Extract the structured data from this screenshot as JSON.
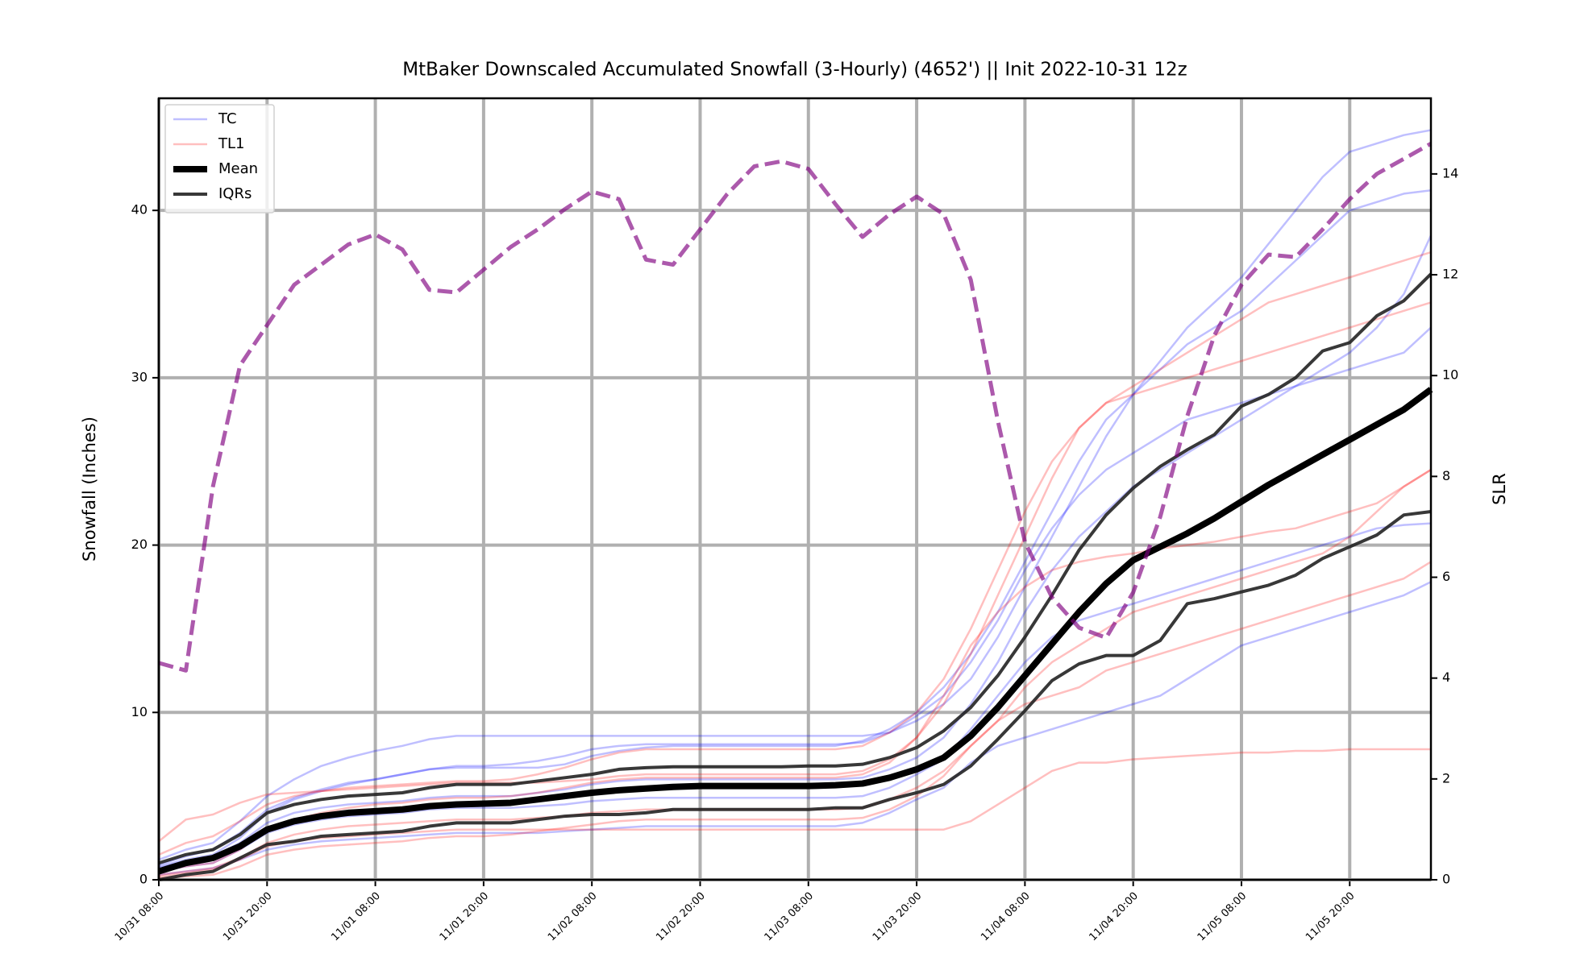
{
  "chart_data": {
    "type": "line",
    "title": "MtBaker Downscaled Accumulated Snowfall (3-Hourly) (4652') || Init 2022-10-31 12z",
    "ylabel": "Snowfall (Inches)",
    "y2label": "SLR",
    "categories": [
      "10/31 08:00",
      null,
      null,
      null,
      "10/31 20:00",
      null,
      null,
      null,
      "11/01 08:00",
      null,
      null,
      null,
      "11/01 20:00",
      null,
      null,
      null,
      "11/02 08:00",
      null,
      null,
      null,
      "11/02 20:00",
      null,
      null,
      null,
      "11/03 08:00",
      null,
      null,
      null,
      "11/03 20:00",
      null,
      null,
      null,
      "11/04 08:00",
      null,
      null,
      null,
      "11/04 20:00",
      null,
      null,
      null,
      "11/05 08:00",
      null,
      null,
      null,
      "11/05 20:00",
      null,
      null,
      null
    ],
    "ylim": [
      0,
      46.7
    ],
    "yticks": [
      0,
      10,
      20,
      30,
      40
    ],
    "y2lim": [
      0,
      15.5
    ],
    "y2ticks": [
      0,
      2,
      4,
      6,
      8,
      10,
      12,
      14
    ],
    "grid": true,
    "legend": "upper left",
    "series": [
      {
        "name": "TC",
        "color": "#0000ff",
        "alpha": 0.25,
        "linewidth": 2.5,
        "members": [
          [
            1.2,
            1.8,
            2.2,
            3.5,
            5.0,
            6.0,
            6.8,
            7.3,
            7.7,
            8.0,
            8.4,
            8.6,
            8.6,
            8.6,
            8.6,
            8.6,
            8.6,
            8.6,
            8.6,
            8.6,
            8.6,
            8.6,
            8.6,
            8.6,
            8.6,
            8.6,
            8.6,
            8.8,
            9.5,
            10.5,
            12.0,
            14.5,
            17.5,
            20.5,
            23.5,
            26.5,
            29.0,
            31.0,
            33.0,
            34.5,
            36.0,
            38.0,
            40.0,
            42.0,
            43.5,
            44.0,
            44.5,
            44.8
          ],
          [
            0.8,
            1.2,
            1.5,
            2.5,
            4.0,
            4.8,
            5.3,
            5.7,
            6.0,
            6.3,
            6.6,
            6.8,
            6.8,
            6.9,
            7.1,
            7.4,
            7.8,
            8.0,
            8.1,
            8.1,
            8.1,
            8.1,
            8.1,
            8.1,
            8.1,
            8.1,
            8.2,
            8.8,
            9.8,
            11.0,
            13.0,
            15.5,
            18.5,
            21.0,
            23.0,
            24.5,
            25.5,
            26.5,
            27.5,
            28.0,
            28.5,
            29.0,
            29.5,
            30.0,
            30.5,
            31.0,
            31.5,
            33.0
          ],
          [
            0.3,
            0.5,
            0.7,
            1.2,
            1.8,
            2.1,
            2.3,
            2.4,
            2.5,
            2.6,
            2.7,
            2.8,
            2.8,
            2.8,
            2.8,
            2.9,
            3.0,
            3.1,
            3.2,
            3.2,
            3.2,
            3.2,
            3.2,
            3.2,
            3.2,
            3.2,
            3.4,
            4.0,
            4.8,
            5.5,
            7.0,
            8.0,
            8.5,
            9.0,
            9.5,
            10.0,
            10.5,
            11.0,
            12.0,
            13.0,
            14.0,
            14.5,
            15.0,
            15.5,
            16.0,
            16.5,
            17.0,
            17.8
          ],
          [
            0.9,
            1.4,
            1.8,
            2.8,
            4.2,
            4.9,
            5.4,
            5.8,
            6.0,
            6.3,
            6.6,
            6.7,
            6.7,
            6.7,
            6.7,
            6.9,
            7.4,
            7.7,
            7.9,
            8.0,
            8.0,
            8.0,
            8.0,
            8.0,
            8.0,
            8.0,
            8.3,
            9.0,
            10.0,
            11.5,
            13.5,
            16.0,
            19.0,
            22.0,
            25.0,
            27.5,
            29.0,
            30.5,
            32.0,
            33.0,
            34.0,
            35.5,
            37.0,
            38.5,
            40.0,
            40.5,
            41.0,
            41.2
          ],
          [
            0.5,
            0.8,
            1.0,
            1.8,
            2.8,
            3.3,
            3.6,
            3.8,
            3.9,
            4.0,
            4.2,
            4.3,
            4.3,
            4.3,
            4.4,
            4.5,
            4.7,
            4.8,
            4.9,
            4.9,
            4.9,
            4.9,
            4.9,
            4.9,
            4.9,
            4.9,
            5.0,
            5.5,
            6.3,
            7.2,
            9.0,
            11.0,
            13.0,
            14.5,
            15.5,
            16.0,
            16.5,
            17.0,
            17.5,
            18.0,
            18.5,
            19.0,
            19.5,
            20.0,
            20.5,
            21.0,
            21.2,
            21.3
          ],
          [
            0.7,
            1.1,
            1.4,
            2.2,
            3.4,
            4.0,
            4.3,
            4.5,
            4.6,
            4.7,
            4.9,
            5.0,
            5.0,
            5.0,
            5.2,
            5.4,
            5.7,
            5.9,
            6.0,
            6.0,
            6.0,
            6.0,
            6.0,
            6.0,
            6.0,
            6.0,
            6.1,
            6.6,
            7.3,
            8.5,
            10.5,
            13.0,
            16.0,
            18.5,
            20.5,
            22.0,
            23.5,
            24.5,
            25.5,
            26.5,
            27.5,
            28.5,
            29.5,
            30.5,
            31.5,
            33.0,
            35.0,
            38.5
          ]
        ]
      },
      {
        "name": "TL1",
        "color": "#ff0000",
        "alpha": 0.25,
        "linewidth": 2.5,
        "members": [
          [
            2.3,
            3.6,
            3.9,
            4.6,
            5.1,
            5.2,
            5.3,
            5.4,
            5.5,
            5.6,
            5.7,
            5.8,
            5.8,
            5.8,
            5.8,
            5.9,
            6.0,
            6.2,
            6.3,
            6.3,
            6.3,
            6.3,
            6.3,
            6.3,
            6.3,
            6.3,
            6.5,
            7.2,
            8.5,
            10.5,
            13.5,
            17.0,
            20.5,
            24.0,
            27.0,
            28.5,
            29.0,
            29.5,
            30.0,
            30.5,
            31.0,
            31.5,
            32.0,
            32.5,
            33.0,
            33.5,
            34.0,
            34.5
          ],
          [
            0.2,
            0.4,
            0.6,
            1.2,
            2.0,
            2.3,
            2.5,
            2.6,
            2.7,
            2.8,
            2.9,
            3.0,
            3.0,
            3.0,
            3.0,
            3.0,
            3.0,
            3.0,
            3.0,
            3.0,
            3.0,
            3.0,
            3.0,
            3.0,
            3.0,
            3.0,
            3.0,
            3.0,
            3.0,
            3.0,
            3.5,
            4.5,
            5.5,
            6.5,
            7.0,
            7.0,
            7.2,
            7.3,
            7.4,
            7.5,
            7.6,
            7.6,
            7.7,
            7.7,
            7.8,
            7.8,
            7.8,
            7.8
          ],
          [
            0.5,
            0.8,
            1.0,
            1.8,
            3.0,
            3.6,
            4.0,
            4.3,
            4.5,
            4.6,
            4.8,
            4.9,
            4.9,
            5.0,
            5.2,
            5.5,
            5.8,
            6.0,
            6.1,
            6.1,
            6.1,
            6.1,
            6.1,
            6.1,
            6.1,
            6.1,
            6.3,
            7.0,
            8.5,
            11.0,
            14.0,
            16.0,
            17.5,
            18.5,
            19.0,
            19.3,
            19.5,
            19.8,
            20.0,
            20.2,
            20.5,
            20.8,
            21.0,
            21.5,
            22.0,
            22.5,
            23.5,
            24.5
          ],
          [
            0.1,
            0.2,
            0.3,
            0.8,
            1.5,
            1.8,
            2.0,
            2.1,
            2.2,
            2.3,
            2.5,
            2.6,
            2.6,
            2.7,
            2.9,
            3.1,
            3.3,
            3.5,
            3.6,
            3.6,
            3.6,
            3.6,
            3.6,
            3.6,
            3.6,
            3.6,
            3.7,
            4.2,
            5.0,
            6.2,
            8.0,
            9.5,
            10.5,
            11.0,
            11.5,
            12.5,
            13.0,
            13.5,
            14.0,
            14.5,
            15.0,
            15.5,
            16.0,
            16.5,
            17.0,
            17.5,
            18.0,
            19.0
          ],
          [
            1.5,
            2.2,
            2.6,
            3.5,
            4.5,
            5.0,
            5.3,
            5.5,
            5.6,
            5.7,
            5.8,
            5.9,
            5.9,
            6.0,
            6.3,
            6.7,
            7.2,
            7.6,
            7.8,
            7.8,
            7.8,
            7.8,
            7.8,
            7.8,
            7.8,
            7.8,
            8.0,
            8.8,
            10.0,
            12.0,
            15.0,
            18.5,
            22.0,
            25.0,
            27.0,
            28.5,
            29.5,
            30.5,
            31.5,
            32.5,
            33.5,
            34.5,
            35.0,
            35.5,
            36.0,
            36.5,
            37.0,
            37.5
          ],
          [
            0.3,
            0.5,
            0.7,
            1.3,
            2.2,
            2.7,
            3.0,
            3.2,
            3.3,
            3.4,
            3.5,
            3.6,
            3.6,
            3.6,
            3.7,
            3.8,
            4.0,
            4.1,
            4.2,
            4.2,
            4.2,
            4.2,
            4.2,
            4.2,
            4.2,
            4.2,
            4.3,
            4.8,
            5.5,
            6.5,
            8.0,
            9.5,
            11.5,
            13.0,
            14.0,
            15.0,
            16.0,
            16.5,
            17.0,
            17.5,
            18.0,
            18.5,
            19.0,
            19.5,
            20.5,
            22.0,
            23.5,
            24.5
          ]
        ]
      },
      {
        "name": "Mean",
        "color": "#000000",
        "alpha": 1,
        "linewidth": 8,
        "members": [
          [
            0.5,
            1.0,
            1.3,
            2.0,
            3.0,
            3.5,
            3.8,
            4.0,
            4.1,
            4.2,
            4.4,
            4.5,
            4.55,
            4.6,
            4.8,
            5.0,
            5.2,
            5.35,
            5.45,
            5.55,
            5.6,
            5.6,
            5.6,
            5.6,
            5.6,
            5.65,
            5.75,
            6.1,
            6.6,
            7.3,
            8.6,
            10.3,
            12.2,
            14.1,
            16.0,
            17.7,
            19.1,
            19.9,
            20.7,
            21.6,
            22.6,
            23.6,
            24.5,
            25.4,
            26.3,
            27.2,
            28.1,
            29.3
          ]
        ]
      },
      {
        "name": "IQRs",
        "color": "#222222",
        "alpha": 0.9,
        "linewidth": 4,
        "members": [
          [
            1.0,
            1.5,
            1.8,
            2.7,
            4.0,
            4.5,
            4.8,
            5.0,
            5.1,
            5.2,
            5.5,
            5.7,
            5.7,
            5.7,
            5.9,
            6.1,
            6.3,
            6.6,
            6.7,
            6.75,
            6.75,
            6.75,
            6.75,
            6.75,
            6.8,
            6.8,
            6.9,
            7.3,
            7.9,
            8.9,
            10.3,
            12.2,
            14.5,
            17.0,
            19.7,
            21.8,
            23.4,
            24.7,
            25.7,
            26.6,
            28.3,
            29.0,
            30.0,
            31.6,
            32.1,
            33.7,
            34.6,
            36.2
          ],
          [
            0,
            0.3,
            0.5,
            1.3,
            2.1,
            2.3,
            2.6,
            2.7,
            2.8,
            2.9,
            3.2,
            3.4,
            3.4,
            3.4,
            3.6,
            3.8,
            3.9,
            3.9,
            4.0,
            4.2,
            4.2,
            4.2,
            4.2,
            4.2,
            4.2,
            4.3,
            4.3,
            4.8,
            5.2,
            5.7,
            6.8,
            8.4,
            10.1,
            11.9,
            12.9,
            13.4,
            13.4,
            14.3,
            16.5,
            16.8,
            17.2,
            17.6,
            18.2,
            19.2,
            19.9,
            20.6,
            21.8,
            22.0
          ]
        ]
      },
      {
        "axis": "y2",
        "color": "#800080",
        "alpha": 0.65,
        "linewidth": 5,
        "linestyle": "dashed",
        "members": [
          [
            4.3,
            4.15,
            7.8,
            10.2,
            11.0,
            11.8,
            12.2,
            12.6,
            12.8,
            12.5,
            11.7,
            11.65,
            12.1,
            12.55,
            12.9,
            13.3,
            13.65,
            13.5,
            12.3,
            12.2,
            12.9,
            13.6,
            14.15,
            14.25,
            14.1,
            13.4,
            12.75,
            13.2,
            13.55,
            13.2,
            11.9,
            9.1,
            6.7,
            5.6,
            5.0,
            4.8,
            5.7,
            7.2,
            9.2,
            10.8,
            11.8,
            12.4,
            12.35,
            12.9,
            13.5,
            14.0,
            14.3,
            14.6
          ]
        ]
      }
    ]
  }
}
